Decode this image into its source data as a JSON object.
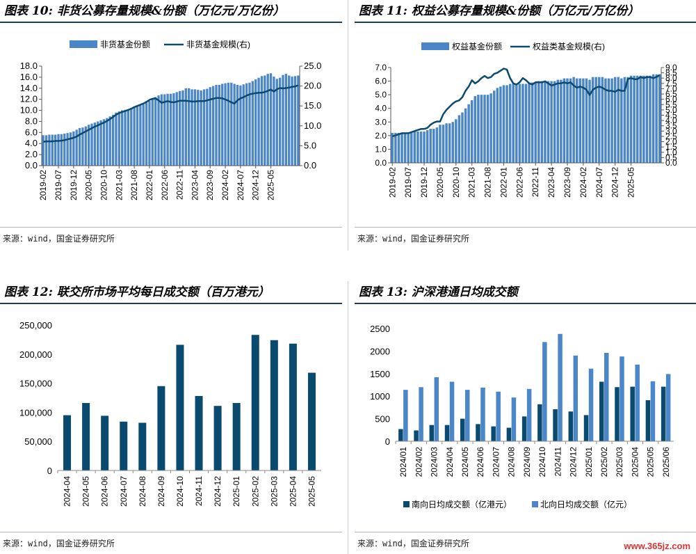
{
  "colors": {
    "bar_light": "#4a86c8",
    "bar_dark": "#0b4a6f",
    "line_dark": "#0b4a6f",
    "title_rule": "#1b3a5c"
  },
  "source_text": "来源：wind，国金证券研究所",
  "watermark": "www.365jz.com",
  "panels": [
    {
      "title": "图表 10: 非货公募存量规模&份额（万亿元/万亿份）"
    },
    {
      "title": "图表 11: 权益公募存量规模&份额（万亿元/万亿份）"
    },
    {
      "title": "图表 12: 联交所市场平均每日成交额（百万港元）"
    },
    {
      "title": "图表 13: 沪深港通日均成交额"
    }
  ],
  "chart_data": [
    {
      "type": "bar",
      "title": "图表 10: 非货公募存量规模&份额（万亿元/万亿份）",
      "x_tick_labels": [
        "2019-02",
        "2019-07",
        "2019-12",
        "2020-05",
        "2020-10",
        "2021-03",
        "2021-08",
        "2022-01",
        "2022-06",
        "2022-11",
        "2023-04",
        "2023-09",
        "2024-02",
        "2024-07",
        "2024-12",
        "2025-05"
      ],
      "x_range": [
        "2019-02",
        "2025-05"
      ],
      "ylim_left": [
        0,
        18
      ],
      "yticks_left": [
        "0.0",
        "2.0",
        "4.0",
        "6.0",
        "8.0",
        "10.0",
        "12.0",
        "14.0",
        "16.0",
        "18.0"
      ],
      "ylim_right": [
        0,
        25
      ],
      "yticks_right": [
        "0.0",
        "5.0",
        "10.0",
        "15.0",
        "20.0",
        "25.0"
      ],
      "legend_position": "top",
      "series": [
        {
          "name": "非货基金份额",
          "kind": "bar",
          "axis": "left",
          "values": [
            5.5,
            5.5,
            5.6,
            5.6,
            5.6,
            5.7,
            5.7,
            5.8,
            5.9,
            6.0,
            6.2,
            6.5,
            6.8,
            6.9,
            7.1,
            7.4,
            7.6,
            7.8,
            8.0,
            8.2,
            8.4,
            8.6,
            8.9,
            9.2,
            9.6,
            9.8,
            10.0,
            10.1,
            10.2,
            10.4,
            10.6,
            10.7,
            10.9,
            11.1,
            11.4,
            11.7,
            12.0,
            12.4,
            12.7,
            12.9,
            12.9,
            13.0,
            13.0,
            13.1,
            13.3,
            13.5,
            13.6,
            14.0,
            14.0,
            13.8,
            13.8,
            13.7,
            13.6,
            13.8,
            13.9,
            14.2,
            14.4,
            14.6,
            14.6,
            14.8,
            14.9,
            15.0,
            15.0,
            14.8,
            14.6,
            14.5,
            14.7,
            14.9,
            15.0,
            15.3,
            15.6,
            15.9,
            16.2,
            16.3,
            16.6,
            16.7,
            16.1,
            15.7,
            15.9,
            16.4,
            16.6,
            16.3,
            16.1,
            16.2,
            16.3
          ]
        },
        {
          "name": "非货基金规模(右)",
          "kind": "line",
          "axis": "right",
          "values": [
            6.0,
            6.1,
            6.1,
            6.1,
            6.2,
            6.2,
            6.3,
            6.4,
            6.6,
            6.8,
            7.0,
            7.3,
            7.8,
            8.2,
            8.6,
            9.0,
            9.4,
            9.8,
            10.1,
            10.5,
            10.8,
            11.2,
            11.7,
            12.2,
            12.8,
            13.2,
            13.5,
            13.7,
            14.0,
            14.3,
            14.7,
            15.0,
            15.3,
            15.6,
            16.0,
            16.5,
            16.8,
            16.9,
            16.4,
            15.8,
            16.0,
            16.2,
            16.0,
            15.9,
            16.1,
            16.3,
            16.3,
            16.3,
            16.2,
            16.1,
            16.1,
            16.2,
            16.2,
            16.2,
            16.4,
            16.6,
            16.8,
            17.0,
            17.0,
            16.9,
            16.6,
            16.3,
            15.9,
            15.6,
            16.4,
            16.9,
            17.2,
            17.6,
            17.9,
            18.1,
            18.2,
            18.3,
            18.3,
            18.5,
            18.8,
            19.1,
            18.6,
            19.2,
            19.5,
            19.4,
            19.5,
            19.6,
            19.8,
            19.9,
            20.2
          ]
        }
      ]
    },
    {
      "type": "bar",
      "title": "图表 11: 权益公募存量规模&份额（万亿元/万亿份）",
      "x_tick_labels": [
        "2019-02",
        "2019-07",
        "2019-12",
        "2020-05",
        "2020-10",
        "2021-03",
        "2021-08",
        "2022-01",
        "2022-06",
        "2022-11",
        "2023-04",
        "2023-09",
        "2024-02",
        "2024-07",
        "2024-12",
        "2025-05"
      ],
      "x_range": [
        "2019-02",
        "2025-05"
      ],
      "ylim_left": [
        0,
        7
      ],
      "yticks_left": [
        "0.0",
        "1.0",
        "2.0",
        "3.0",
        "4.0",
        "5.0",
        "6.0",
        "7.0"
      ],
      "ylim_right": [
        0,
        9
      ],
      "yticks_right": [
        "0.0",
        "0.5",
        "1.0",
        "1.5",
        "2.0",
        "2.5",
        "3.0",
        "3.5",
        "4.0",
        "4.5",
        "5.0",
        "5.5",
        "6.0",
        "6.5",
        "7.0",
        "7.5",
        "8.0",
        "8.5",
        "9.0"
      ],
      "legend_position": "top",
      "series": [
        {
          "name": "权益基金份额",
          "kind": "bar",
          "axis": "left",
          "values": [
            2.2,
            2.2,
            2.2,
            2.2,
            2.2,
            2.2,
            2.2,
            2.3,
            2.3,
            2.3,
            2.3,
            2.4,
            2.5,
            2.5,
            2.6,
            2.8,
            2.8,
            2.9,
            2.9,
            3.0,
            3.2,
            3.5,
            3.7,
            4.0,
            4.3,
            4.6,
            4.9,
            5.0,
            5.0,
            5.0,
            5.0,
            5.1,
            5.3,
            5.5,
            5.6,
            5.7,
            5.7,
            5.8,
            5.8,
            5.8,
            5.8,
            5.8,
            5.8,
            5.9,
            5.9,
            5.9,
            6.0,
            6.0,
            6.0,
            6.0,
            6.0,
            6.0,
            6.1,
            6.1,
            6.2,
            6.2,
            6.2,
            6.3,
            6.2,
            6.2,
            6.2,
            6.2,
            6.1,
            6.3,
            6.3,
            6.3,
            6.3,
            6.2,
            6.2,
            6.2,
            6.3,
            6.3,
            6.2,
            6.3,
            6.3,
            6.4,
            6.4,
            6.4,
            6.4,
            6.4,
            6.4,
            6.4,
            6.5,
            6.5,
            6.5
          ]
        },
        {
          "name": "权益类基金规模(右)",
          "kind": "line",
          "axis": "right",
          "values": [
            2.5,
            2.6,
            2.7,
            2.8,
            2.8,
            2.8,
            2.9,
            3.0,
            3.1,
            3.2,
            3.2,
            3.3,
            3.6,
            3.8,
            3.9,
            3.9,
            4.6,
            5.0,
            5.3,
            5.6,
            5.8,
            5.9,
            6.2,
            6.8,
            7.2,
            7.8,
            7.5,
            7.7,
            8.0,
            8.2,
            8.0,
            8.1,
            8.4,
            8.5,
            8.7,
            8.9,
            8.8,
            8.0,
            7.5,
            7.4,
            7.6,
            8.0,
            7.8,
            7.5,
            7.4,
            7.6,
            7.6,
            7.6,
            7.7,
            7.5,
            7.3,
            7.4,
            7.5,
            7.5,
            7.6,
            7.5,
            7.6,
            7.3,
            7.1,
            7.2,
            7.1,
            6.9,
            6.4,
            6.9,
            7.1,
            7.2,
            7.1,
            6.9,
            6.8,
            6.8,
            6.7,
            6.9,
            6.8,
            6.8,
            7.9,
            8.0,
            7.9,
            7.9,
            8.1,
            8.0,
            8.1,
            8.1,
            8.0,
            8.1,
            8.3
          ]
        }
      ]
    },
    {
      "type": "bar",
      "title": "图表 12: 联交所市场平均每日成交额（百万港元）",
      "categories": [
        "2024-04",
        "2024-05",
        "2024-06",
        "2024-07",
        "2024-08",
        "2024-09",
        "2024-10",
        "2024-11",
        "2024-12",
        "2025-01",
        "2025-02",
        "2025-03",
        "2025-04",
        "2025-05"
      ],
      "ylim": [
        0,
        250000
      ],
      "yticks": [
        "0",
        "50,000",
        "100,000",
        "150,000",
        "200,000",
        "250,000"
      ],
      "series": [
        {
          "name": "",
          "values": [
            95000,
            116000,
            94000,
            84000,
            82000,
            145000,
            216000,
            128000,
            111000,
            116000,
            233000,
            224000,
            218000,
            168000
          ]
        }
      ]
    },
    {
      "type": "bar",
      "title": "图表 13: 沪深港通日均成交额",
      "categories": [
        "2024/01",
        "2024/02",
        "2024/03",
        "2024/04",
        "2024/05",
        "2024/06",
        "2024/07",
        "2024/08",
        "2024/09",
        "2024/10",
        "2024/11",
        "2024/12",
        "2025/01",
        "2025/02",
        "2025/03",
        "2025/04",
        "2025/05",
        "2025/06"
      ],
      "ylim": [
        0,
        2500
      ],
      "yticks": [
        "0",
        "500",
        "1000",
        "1500",
        "2000",
        "2500"
      ],
      "legend_position": "bottom",
      "series": [
        {
          "name": "南向日均成交额（亿港元）",
          "values": [
            270,
            240,
            360,
            360,
            500,
            380,
            330,
            300,
            550,
            820,
            710,
            660,
            580,
            1320,
            1200,
            1210,
            910,
            1210
          ]
        },
        {
          "name": "北向日均成交额（亿元）",
          "values": [
            1140,
            1200,
            1420,
            1320,
            1140,
            1190,
            1100,
            970,
            1160,
            2200,
            2380,
            1900,
            1610,
            1960,
            1880,
            1700,
            1330,
            1490
          ]
        }
      ]
    }
  ]
}
